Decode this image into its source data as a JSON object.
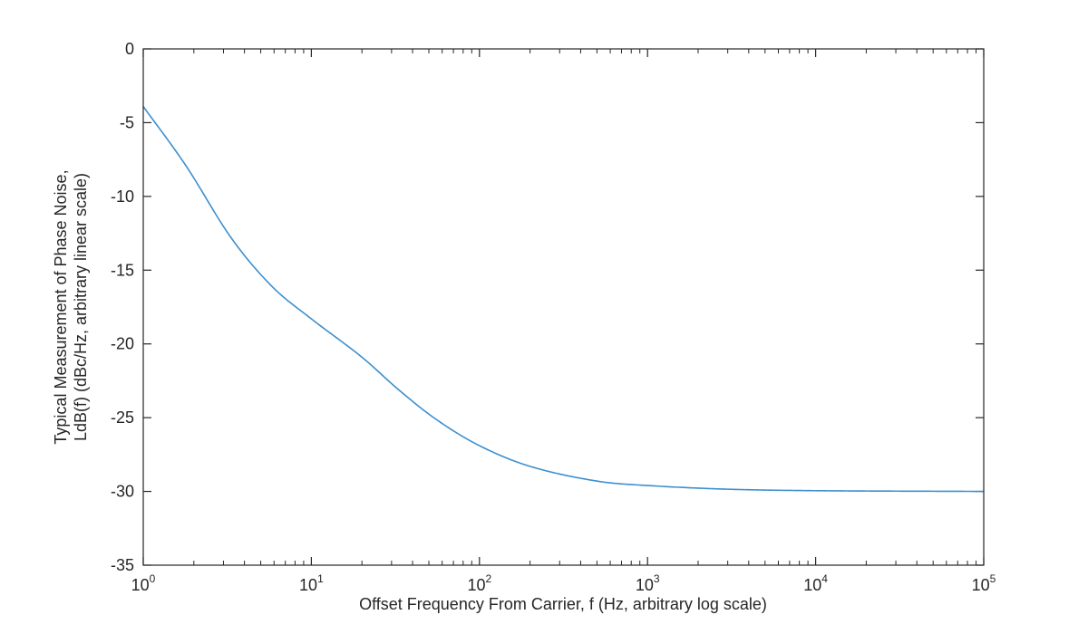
{
  "chart_data": {
    "type": "line",
    "title": "",
    "xlabel": "Offset Frequency From Carrier, f (Hz, arbitrary log scale)",
    "ylabel_line1": "Typical Measurement of Phase Noise,",
    "ylabel_line2": "LdB(f) (dBc/Hz, arbitrary linear scale)",
    "xscale": "log",
    "xlim": [
      1,
      100000
    ],
    "ylim": [
      -35,
      0
    ],
    "grid": false,
    "legend": null,
    "x_ticks": [
      {
        "base": "10",
        "exp": "0",
        "value": 1
      },
      {
        "base": "10",
        "exp": "1",
        "value": 10
      },
      {
        "base": "10",
        "exp": "2",
        "value": 100
      },
      {
        "base": "10",
        "exp": "3",
        "value": 1000
      },
      {
        "base": "10",
        "exp": "4",
        "value": 10000
      },
      {
        "base": "10",
        "exp": "5",
        "value": 100000
      }
    ],
    "y_ticks": [
      "0",
      "-5",
      "-10",
      "-15",
      "-20",
      "-25",
      "-30",
      "-35"
    ],
    "y_tick_values": [
      0,
      -5,
      -10,
      -15,
      -20,
      -25,
      -30,
      -35
    ],
    "series": [
      {
        "name": "LdB(f)",
        "color": "#3d8fce",
        "x": [
          1,
          1.79,
          3.33,
          5.83,
          10,
          20,
          33,
          55,
          100,
          200,
          500,
          1000,
          3000,
          10000,
          100000
        ],
        "y": [
          -3.9,
          -7.9,
          -12.8,
          -16.1,
          -18.3,
          -20.9,
          -23.1,
          -25.1,
          -26.9,
          -28.3,
          -29.3,
          -29.6,
          -29.85,
          -29.95,
          -30.0
        ]
      }
    ]
  },
  "colors": {
    "axis": "#262626",
    "line": "#3d8fce",
    "background": "#ffffff"
  }
}
